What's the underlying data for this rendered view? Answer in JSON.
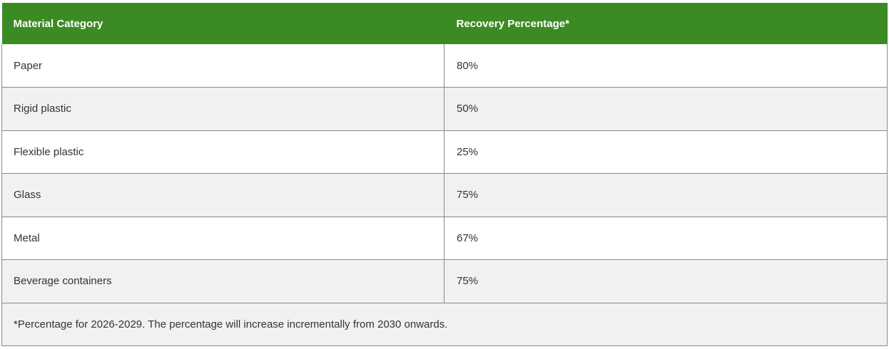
{
  "table": {
    "headers": [
      "Material Category",
      "Recovery Percentage*"
    ],
    "rows": [
      [
        "Paper",
        "80%"
      ],
      [
        "Rigid plastic",
        "50%"
      ],
      [
        "Flexible plastic",
        "25%"
      ],
      [
        "Glass",
        "75%"
      ],
      [
        "Metal",
        "67%"
      ],
      [
        "Beverage containers",
        "75%"
      ]
    ],
    "footnote": "*Percentage for 2026-2029. The percentage will increase incrementally from 2030 onwards."
  },
  "colors": {
    "header_bg": "#3c8a24",
    "header_text": "#ffffff",
    "row_alt_bg": "#f1f1f1",
    "border": "#8a8a8a"
  }
}
